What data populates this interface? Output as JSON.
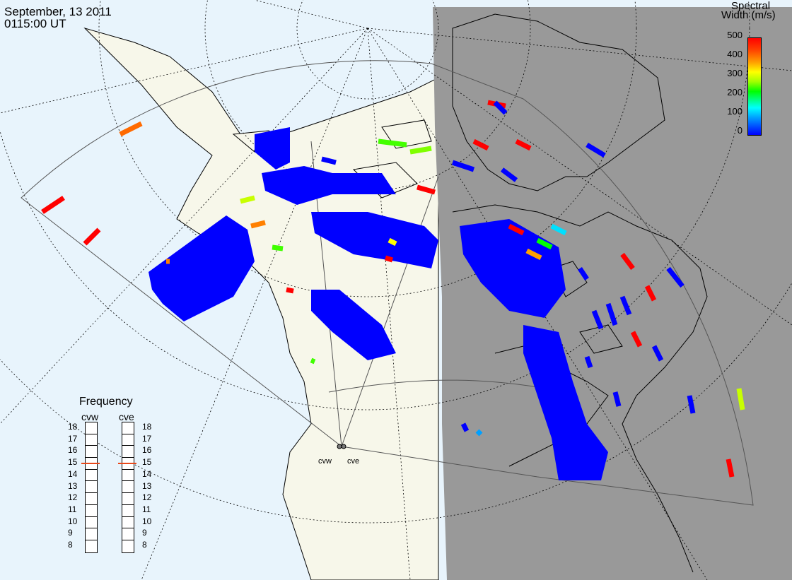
{
  "header": {
    "date": "September, 13 2011",
    "time": "0115:00 UT"
  },
  "colorbar": {
    "title_line1": "Spectral",
    "title_line2": "Width (m/s)",
    "ticks": [
      "500",
      "400",
      "300",
      "200",
      "100",
      "0"
    ]
  },
  "frequency_panel": {
    "title": "Frequency",
    "radars": [
      "cvw",
      "cve"
    ],
    "levels": [
      "18",
      "17",
      "16",
      "15",
      "14",
      "13",
      "12",
      "11",
      "10",
      "9",
      "8"
    ],
    "cvw_value": 15,
    "cve_value": 15
  },
  "sites": [
    "cvw",
    "cve"
  ],
  "colors": {
    "ocean": "#e8f4fc",
    "land": "#f7f7ea",
    "night": "#999999",
    "echo_low": "#0000ff",
    "echo_high": "#ff0000",
    "marker": "#e8481a"
  }
}
